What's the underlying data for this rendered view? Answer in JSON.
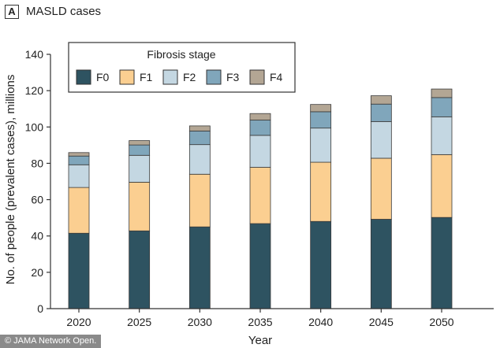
{
  "panel": {
    "badge": "A",
    "title": "MASLD cases"
  },
  "watermark": "© JAMA Network Open.",
  "colors": {
    "F0": "#2e5361",
    "F1": "#fbcf91",
    "F2": "#c4d7e2",
    "F3": "#80a6bb",
    "F4": "#b3a694",
    "axis": "#333333"
  },
  "chart_data": {
    "type": "bar",
    "stacked": true,
    "title": "MASLD cases",
    "xlabel": "Year",
    "ylabel": "No. of people (prevalent cases), millions",
    "ylim": [
      0,
      140
    ],
    "yticks": [
      0,
      20,
      40,
      60,
      80,
      100,
      120,
      140
    ],
    "categories": [
      "2020",
      "2025",
      "2030",
      "2035",
      "2040",
      "2045",
      "2050"
    ],
    "legend_title": "Fibrosis stage",
    "legend_position": "top-left",
    "series": [
      {
        "name": "F0",
        "values": [
          41.5,
          42.8,
          45.0,
          46.8,
          48.0,
          49.2,
          50.2
        ]
      },
      {
        "name": "F1",
        "values": [
          25.2,
          26.8,
          29.0,
          31.0,
          32.6,
          33.6,
          34.6
        ]
      },
      {
        "name": "F2",
        "values": [
          12.5,
          14.8,
          16.3,
          17.6,
          18.8,
          20.2,
          20.8
        ]
      },
      {
        "name": "F3",
        "values": [
          4.8,
          5.7,
          7.5,
          8.4,
          9.0,
          9.6,
          10.6
        ]
      },
      {
        "name": "F4",
        "values": [
          1.9,
          2.4,
          2.8,
          3.6,
          4.0,
          4.6,
          4.7
        ]
      }
    ]
  }
}
